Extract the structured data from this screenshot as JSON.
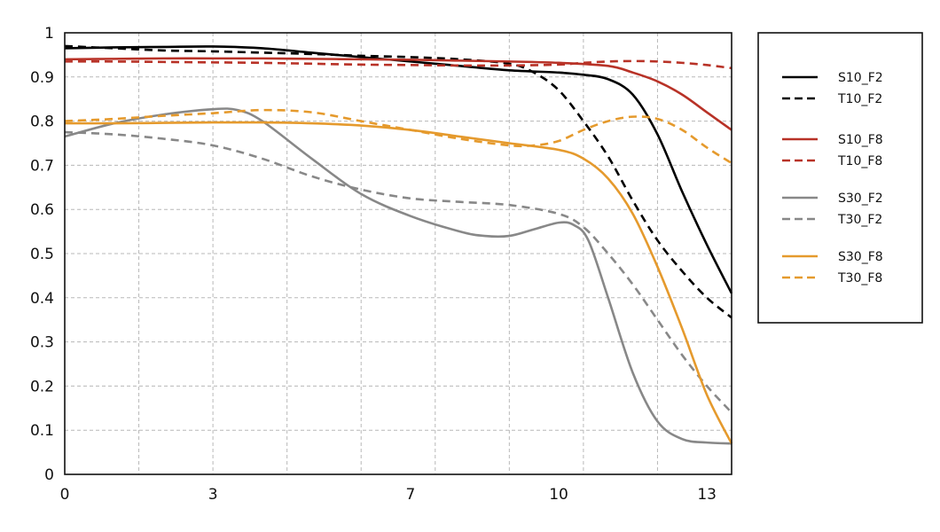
{
  "chart_data": {
    "type": "line",
    "title": "",
    "xlabel": "",
    "ylabel": "",
    "xlim": [
      0,
      13.5
    ],
    "ylim": [
      0,
      1
    ],
    "x_ticks": [
      0,
      3,
      7,
      10,
      13
    ],
    "x_tick_labels": [
      "0",
      "3",
      "7",
      "10",
      "13"
    ],
    "y_ticks": [
      0,
      0.1,
      0.2,
      0.3,
      0.4,
      0.5,
      0.6,
      0.7,
      0.8,
      0.9,
      1
    ],
    "y_tick_labels": [
      "0",
      "0.1",
      "0.2",
      "0.3",
      "0.4",
      "0.5",
      "0.6",
      "0.7",
      "0.8",
      "0.9",
      "1"
    ],
    "grid": true,
    "legend_position": "right",
    "series": [
      {
        "name": "S10_F2",
        "color": "#000000",
        "dash": "solid",
        "x": [
          0,
          1,
          2,
          3,
          4,
          5,
          6,
          7,
          8,
          9,
          10,
          10.5,
          11,
          11.5,
          12,
          12.5,
          13,
          13.5
        ],
        "y": [
          0.965,
          0.967,
          0.968,
          0.969,
          0.965,
          0.955,
          0.945,
          0.935,
          0.925,
          0.915,
          0.91,
          0.905,
          0.895,
          0.86,
          0.77,
          0.64,
          0.52,
          0.41
        ]
      },
      {
        "name": "T10_F2",
        "color": "#000000",
        "dash": "dashed",
        "x": [
          0,
          1,
          2,
          3,
          4,
          5,
          6,
          7,
          8,
          9,
          9.5,
          10,
          10.5,
          11,
          11.5,
          12,
          12.5,
          13,
          13.5
        ],
        "y": [
          0.97,
          0.965,
          0.96,
          0.958,
          0.955,
          0.952,
          0.948,
          0.945,
          0.94,
          0.93,
          0.91,
          0.87,
          0.8,
          0.72,
          0.62,
          0.53,
          0.46,
          0.4,
          0.355
        ]
      },
      {
        "name": "S10_F8",
        "color": "#b83227",
        "dash": "solid",
        "x": [
          0,
          1,
          2,
          3,
          4,
          5,
          6,
          7,
          8,
          9,
          10,
          11,
          11.5,
          12,
          12.5,
          13,
          13.5
        ],
        "y": [
          0.94,
          0.941,
          0.942,
          0.942,
          0.942,
          0.941,
          0.94,
          0.939,
          0.937,
          0.935,
          0.932,
          0.925,
          0.91,
          0.89,
          0.86,
          0.82,
          0.78
        ]
      },
      {
        "name": "T10_F8",
        "color": "#b83227",
        "dash": "dashed",
        "x": [
          0,
          1,
          2,
          3,
          4,
          5,
          6,
          7,
          8,
          9,
          10,
          10.5,
          11,
          11.5,
          12,
          12.5,
          13,
          13.5
        ],
        "y": [
          0.935,
          0.935,
          0.934,
          0.933,
          0.932,
          0.93,
          0.928,
          0.927,
          0.926,
          0.926,
          0.928,
          0.932,
          0.935,
          0.936,
          0.935,
          0.932,
          0.927,
          0.92
        ]
      },
      {
        "name": "S30_F2",
        "color": "#888888",
        "dash": "solid",
        "x": [
          0,
          1,
          2,
          3,
          3.5,
          4,
          5,
          6,
          7,
          8,
          8.5,
          9,
          9.5,
          10,
          10.3,
          10.6,
          11,
          11.5,
          12,
          12.5,
          13,
          13.5
        ],
        "y": [
          0.765,
          0.795,
          0.815,
          0.827,
          0.825,
          0.8,
          0.715,
          0.635,
          0.585,
          0.55,
          0.54,
          0.54,
          0.555,
          0.57,
          0.565,
          0.53,
          0.4,
          0.23,
          0.12,
          0.08,
          0.072,
          0.07
        ]
      },
      {
        "name": "T30_F2",
        "color": "#888888",
        "dash": "dashed",
        "x": [
          0,
          1,
          2,
          3,
          4,
          5,
          6,
          7,
          8,
          9,
          10,
          10.5,
          11,
          11.5,
          12,
          12.5,
          13,
          13.5
        ],
        "y": [
          0.775,
          0.77,
          0.76,
          0.745,
          0.715,
          0.675,
          0.645,
          0.625,
          0.617,
          0.61,
          0.59,
          0.56,
          0.5,
          0.43,
          0.35,
          0.27,
          0.2,
          0.14
        ]
      },
      {
        "name": "S30_F8",
        "color": "#e59a2d",
        "dash": "solid",
        "x": [
          0,
          1,
          2,
          3,
          4,
          5,
          6,
          7,
          8,
          9,
          10,
          10.5,
          11,
          11.5,
          12,
          12.5,
          13,
          13.5
        ],
        "y": [
          0.795,
          0.795,
          0.796,
          0.797,
          0.797,
          0.795,
          0.79,
          0.78,
          0.765,
          0.75,
          0.735,
          0.715,
          0.67,
          0.59,
          0.47,
          0.33,
          0.18,
          0.07
        ]
      },
      {
        "name": "T30_F8",
        "color": "#e59a2d",
        "dash": "dashed",
        "x": [
          0,
          1,
          2,
          3,
          4,
          5,
          6,
          7,
          8,
          9,
          9.5,
          10,
          10.5,
          11,
          11.5,
          12,
          12.5,
          13,
          13.5
        ],
        "y": [
          0.8,
          0.805,
          0.812,
          0.818,
          0.825,
          0.82,
          0.8,
          0.78,
          0.76,
          0.745,
          0.745,
          0.755,
          0.78,
          0.8,
          0.81,
          0.805,
          0.78,
          0.74,
          0.705
        ]
      }
    ]
  }
}
